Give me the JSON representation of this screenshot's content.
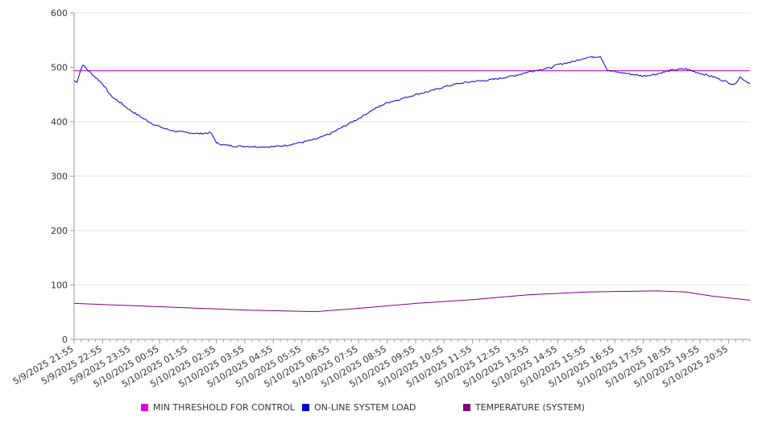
{
  "chart_data": {
    "type": "line",
    "title": "",
    "xlabel": "",
    "ylabel": "",
    "ylim": [
      0,
      600
    ],
    "y_ticks": [
      0,
      100,
      200,
      300,
      400,
      500,
      600
    ],
    "grid": true,
    "legend_position": "bottom",
    "x_tick_labels": [
      "5/9/2025 21:55",
      "5/9/2025 22:55",
      "5/9/2025 23:55",
      "5/10/2025 00:55",
      "5/10/2025 01:55",
      "5/10/2025 02:55",
      "5/10/2025 03:55",
      "5/10/2025 04:55",
      "5/10/2025 05:55",
      "5/10/2025 06:55",
      "5/10/2025 07:55",
      "5/10/2025 08:55",
      "5/10/2025 09:55",
      "5/10/2025 10:55",
      "5/10/2025 11:55",
      "5/10/2025 12:55",
      "5/10/2025 13:55",
      "5/10/2025 14:55",
      "5/10/2025 15:55",
      "5/10/2025 16:55",
      "5/10/2025 17:55",
      "5/10/2025 18:55",
      "5/10/2025 19:55",
      "5/10/2025 20:55"
    ],
    "x_range_hours": [
      0,
      23.75
    ],
    "series": [
      {
        "name": "MIN THRESHOLD FOR CONTROL",
        "color": "#e000e0",
        "x_hours": [
          0,
          23.75
        ],
        "values": [
          494,
          494
        ]
      },
      {
        "name": "ON-LINE SYSTEM LOAD",
        "color": "#0000d0",
        "x_hours": [
          0,
          0.1,
          0.2,
          0.3,
          0.5,
          0.7,
          1.0,
          1.3,
          1.6,
          2.0,
          2.4,
          2.8,
          3.2,
          3.6,
          4.0,
          4.4,
          4.8,
          5.0,
          5.05,
          5.3,
          5.7,
          6.0,
          6.5,
          7.0,
          7.5,
          8.0,
          8.5,
          9.0,
          9.5,
          10.0,
          10.5,
          11.0,
          11.5,
          12.0,
          12.5,
          13.0,
          13.5,
          14.0,
          14.5,
          15.0,
          15.5,
          16.0,
          16.5,
          16.75,
          17.0,
          17.5,
          18.0,
          18.5,
          18.75,
          19.0,
          19.5,
          20.0,
          20.5,
          21.0,
          21.5,
          22.0,
          22.5,
          22.8,
          23.0,
          23.2,
          23.4,
          23.6,
          23.75
        ],
        "values": [
          475,
          473,
          490,
          505,
          494,
          484,
          470,
          447,
          436,
          420,
          407,
          395,
          387,
          382,
          380,
          378,
          380,
          362,
          360,
          357,
          355,
          355,
          354,
          354,
          357,
          362,
          368,
          378,
          392,
          406,
          422,
          435,
          442,
          450,
          456,
          464,
          470,
          474,
          476,
          480,
          485,
          492,
          497,
          499,
          505,
          510,
          518,
          520,
          494,
          492,
          488,
          484,
          488,
          495,
          497,
          489,
          482,
          476,
          472,
          468,
          482,
          475,
          470
        ]
      },
      {
        "name": "TEMPERATURE (SYSTEM)",
        "color": "#800080",
        "x_hours": [
          0,
          2,
          4,
          6,
          7.5,
          8.5,
          10,
          12,
          14,
          16,
          18,
          19,
          20.5,
          21.5,
          22.5,
          23.75
        ],
        "values": [
          66,
          62,
          58,
          54,
          52,
          51,
          57,
          66,
          73,
          82,
          87,
          88,
          89,
          87,
          79,
          72
        ]
      }
    ]
  }
}
